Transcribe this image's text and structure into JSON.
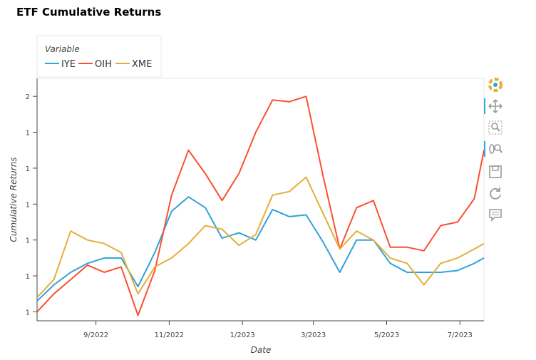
{
  "title": "ETF Cumulative Returns",
  "legend": {
    "title": "Variable",
    "items": [
      {
        "name": "IYE",
        "color": "#30a2da"
      },
      {
        "name": "OIH",
        "color": "#fc4f30"
      },
      {
        "name": "XME",
        "color": "#e5ae38"
      }
    ]
  },
  "toolbar": [
    {
      "name": "bokeh-logo-icon",
      "active": false
    },
    {
      "name": "pan-icon",
      "active": true
    },
    {
      "name": "box-zoom-icon",
      "active": false
    },
    {
      "name": "wheel-zoom-icon",
      "active": true
    },
    {
      "name": "save-icon",
      "active": false
    },
    {
      "name": "reset-icon",
      "active": false
    },
    {
      "name": "hover-icon",
      "active": false
    }
  ],
  "chart_data": {
    "type": "line",
    "title": "ETF Cumulative Returns",
    "xlabel": "Date",
    "ylabel": "Cumulative Returns",
    "x_tick_labels": [
      "9/2022",
      "11/2022",
      "1/2023",
      "3/2023",
      "5/2023",
      "7/2023"
    ],
    "y_tick_labels": [
      "1",
      "1",
      "1",
      "1",
      "1",
      "1",
      "2"
    ],
    "x_range": [
      "2022-07-14",
      "2023-07-21"
    ],
    "y_range": [
      0.75,
      2.1
    ],
    "grid": false,
    "legend_position": "top-left",
    "x": [
      "2022-07-14",
      "2022-07-28",
      "2022-08-11",
      "2022-08-25",
      "2022-09-08",
      "2022-09-22",
      "2022-10-06",
      "2022-10-20",
      "2022-11-03",
      "2022-11-17",
      "2022-12-01",
      "2022-12-15",
      "2022-12-29",
      "2023-01-12",
      "2023-01-26",
      "2023-02-09",
      "2023-02-23",
      "2023-03-09",
      "2023-03-23",
      "2023-04-06",
      "2023-04-20",
      "2023-05-04",
      "2023-05-18",
      "2023-06-01",
      "2023-06-15",
      "2023-06-29",
      "2023-07-13",
      "2023-07-21"
    ],
    "series": [
      {
        "name": "IYE",
        "values": [
          0.86,
          0.95,
          1.02,
          1.07,
          1.1,
          1.1,
          0.94,
          1.13,
          1.36,
          1.44,
          1.38,
          1.21,
          1.24,
          1.2,
          1.37,
          1.33,
          1.34,
          1.19,
          1.02,
          1.2,
          1.2,
          1.07,
          1.02,
          1.02,
          1.02,
          1.03,
          1.07,
          1.1
        ]
      },
      {
        "name": "OIH",
        "values": [
          0.8,
          0.9,
          0.98,
          1.06,
          1.02,
          1.05,
          0.78,
          1.03,
          1.45,
          1.7,
          1.57,
          1.42,
          1.57,
          1.8,
          1.98,
          1.97,
          2.0,
          1.56,
          1.15,
          1.38,
          1.42,
          1.16,
          1.16,
          1.14,
          1.28,
          1.3,
          1.43,
          1.7
        ]
      },
      {
        "name": "XME",
        "values": [
          0.88,
          0.98,
          1.25,
          1.2,
          1.18,
          1.13,
          0.9,
          1.05,
          1.1,
          1.18,
          1.28,
          1.26,
          1.17,
          1.23,
          1.45,
          1.47,
          1.55,
          1.35,
          1.15,
          1.25,
          1.2,
          1.1,
          1.07,
          0.95,
          1.07,
          1.1,
          1.15,
          1.18
        ]
      }
    ]
  }
}
